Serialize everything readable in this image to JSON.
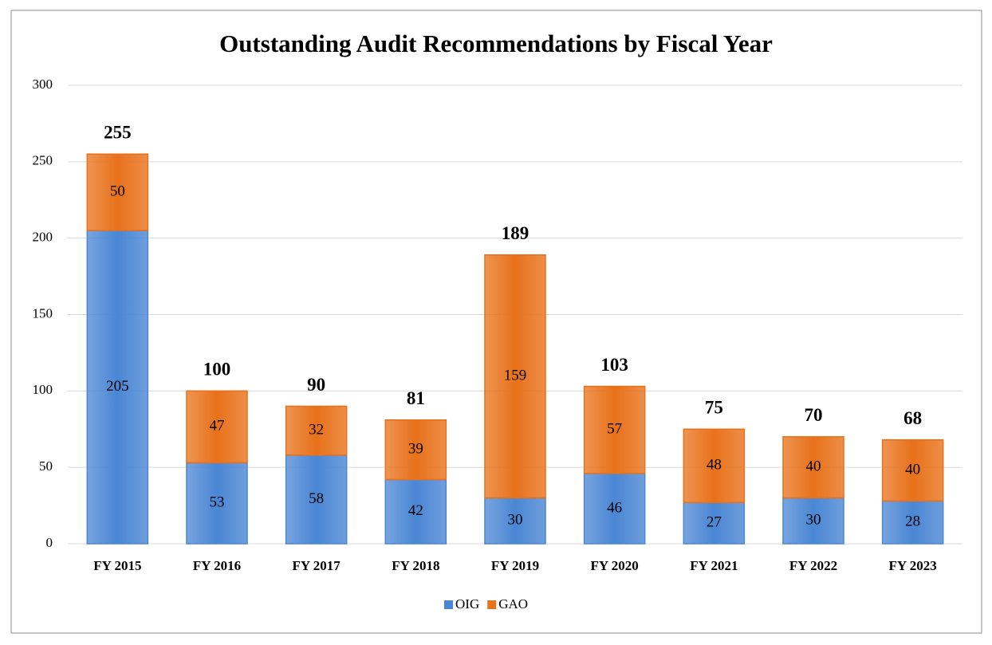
{
  "chart_data": {
    "type": "stacked_bar",
    "title": "Outstanding Audit Recommendations by Fiscal Year",
    "categories": [
      "FY 2015",
      "FY 2016",
      "FY 2017",
      "FY 2018",
      "FY 2019",
      "FY 2020",
      "FY 2021",
      "FY 2022",
      "FY 2023"
    ],
    "series": [
      {
        "name": "OIG",
        "color": "#4a86d4",
        "values": [
          205,
          53,
          58,
          42,
          30,
          46,
          27,
          30,
          28
        ]
      },
      {
        "name": "GAO",
        "color": "#e8711a",
        "values": [
          50,
          47,
          32,
          39,
          159,
          57,
          48,
          40,
          40
        ]
      }
    ],
    "totals": [
      255,
      100,
      90,
      81,
      189,
      103,
      75,
      70,
      68
    ],
    "ylim": [
      0,
      300
    ],
    "yticks": [
      0,
      50,
      100,
      150,
      200,
      250,
      300
    ],
    "grid": true,
    "legend": "bottom"
  }
}
